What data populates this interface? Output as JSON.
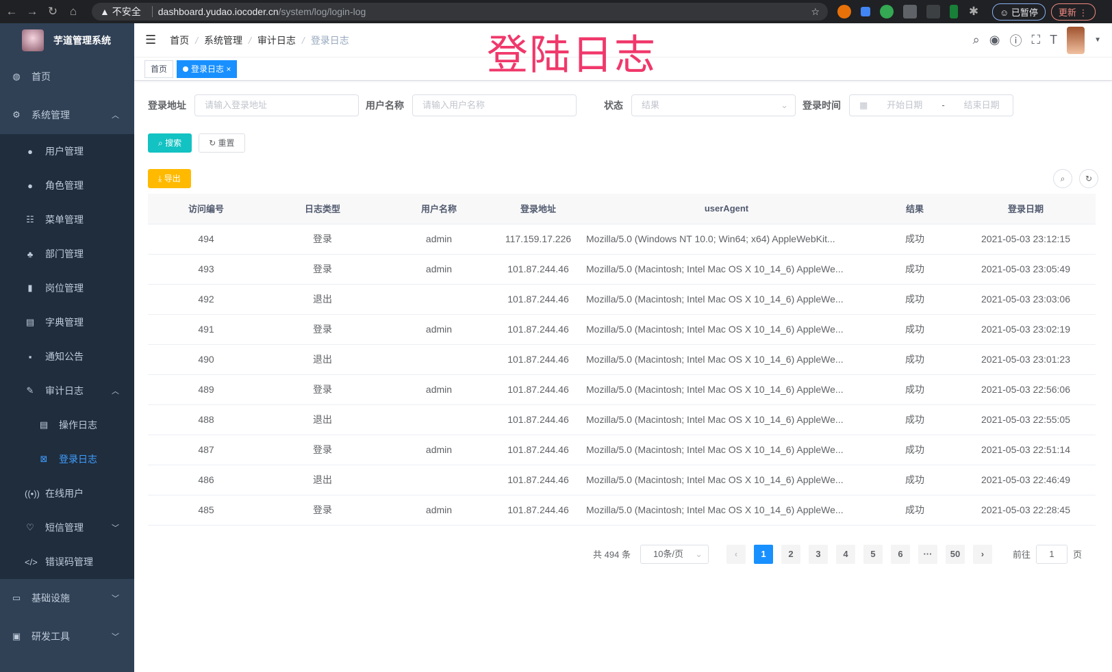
{
  "browser": {
    "security": "不安全",
    "host": "dashboard.yudao.iocoder.cn",
    "path": "/system/log/login-log",
    "paused": "已暂停",
    "update": "更新"
  },
  "overlay_title": "登陆日志",
  "app": {
    "title": "芋道管理系统"
  },
  "sidebar": {
    "items": [
      {
        "label": "首页",
        "icon": "dashboard-icon"
      },
      {
        "label": "系统管理",
        "icon": "gear-icon",
        "expanded": true,
        "children": [
          {
            "label": "用户管理",
            "icon": "user-icon"
          },
          {
            "label": "角色管理",
            "icon": "peoples-icon"
          },
          {
            "label": "菜单管理",
            "icon": "tree-table-icon"
          },
          {
            "label": "部门管理",
            "icon": "tree-icon"
          },
          {
            "label": "岗位管理",
            "icon": "post-icon"
          },
          {
            "label": "字典管理",
            "icon": "dict-icon"
          },
          {
            "label": "通知公告",
            "icon": "message-icon"
          },
          {
            "label": "审计日志",
            "icon": "log-icon",
            "expanded": true,
            "children": [
              {
                "label": "操作日志",
                "icon": "form-icon"
              },
              {
                "label": "登录日志",
                "icon": "logininfor-icon",
                "active": true
              }
            ]
          },
          {
            "label": "在线用户",
            "icon": "online-icon"
          },
          {
            "label": "短信管理",
            "icon": "validCode-icon",
            "collapsed": true
          },
          {
            "label": "错误码管理",
            "icon": "code-icon"
          }
        ]
      },
      {
        "label": "基础设施",
        "icon": "monitor-icon",
        "collapsed": true
      },
      {
        "label": "研发工具",
        "icon": "tool-icon",
        "collapsed": true
      }
    ]
  },
  "breadcrumb": [
    "首页",
    "系统管理",
    "审计日志",
    "登录日志"
  ],
  "tags": [
    {
      "label": "首页"
    },
    {
      "label": "登录日志",
      "active": true
    }
  ],
  "filters": {
    "ip": {
      "label": "登录地址",
      "placeholder": "请输入登录地址"
    },
    "user": {
      "label": "用户名称",
      "placeholder": "请输入用户名称"
    },
    "status": {
      "label": "状态",
      "placeholder": "结果"
    },
    "time": {
      "label": "登录时间",
      "start": "开始日期",
      "sep": "-",
      "end": "结束日期"
    }
  },
  "buttons": {
    "search": "搜索",
    "reset": "重置",
    "export": "导出"
  },
  "table": {
    "headers": [
      "访问编号",
      "日志类型",
      "用户名称",
      "登录地址",
      "userAgent",
      "结果",
      "登录日期"
    ],
    "rows": [
      [
        "494",
        "登录",
        "admin",
        "117.159.17.226",
        "Mozilla/5.0 (Windows NT 10.0; Win64; x64) AppleWebKit...",
        "成功",
        "2021-05-03 23:12:15"
      ],
      [
        "493",
        "登录",
        "admin",
        "101.87.244.46",
        "Mozilla/5.0 (Macintosh; Intel Mac OS X 10_14_6) AppleWe...",
        "成功",
        "2021-05-03 23:05:49"
      ],
      [
        "492",
        "退出",
        "",
        "101.87.244.46",
        "Mozilla/5.0 (Macintosh; Intel Mac OS X 10_14_6) AppleWe...",
        "成功",
        "2021-05-03 23:03:06"
      ],
      [
        "491",
        "登录",
        "admin",
        "101.87.244.46",
        "Mozilla/5.0 (Macintosh; Intel Mac OS X 10_14_6) AppleWe...",
        "成功",
        "2021-05-03 23:02:19"
      ],
      [
        "490",
        "退出",
        "",
        "101.87.244.46",
        "Mozilla/5.0 (Macintosh; Intel Mac OS X 10_14_6) AppleWe...",
        "成功",
        "2021-05-03 23:01:23"
      ],
      [
        "489",
        "登录",
        "admin",
        "101.87.244.46",
        "Mozilla/5.0 (Macintosh; Intel Mac OS X 10_14_6) AppleWe...",
        "成功",
        "2021-05-03 22:56:06"
      ],
      [
        "488",
        "退出",
        "",
        "101.87.244.46",
        "Mozilla/5.0 (Macintosh; Intel Mac OS X 10_14_6) AppleWe...",
        "成功",
        "2021-05-03 22:55:05"
      ],
      [
        "487",
        "登录",
        "admin",
        "101.87.244.46",
        "Mozilla/5.0 (Macintosh; Intel Mac OS X 10_14_6) AppleWe...",
        "成功",
        "2021-05-03 22:51:14"
      ],
      [
        "486",
        "退出",
        "",
        "101.87.244.46",
        "Mozilla/5.0 (Macintosh; Intel Mac OS X 10_14_6) AppleWe...",
        "成功",
        "2021-05-03 22:46:49"
      ],
      [
        "485",
        "登录",
        "admin",
        "101.87.244.46",
        "Mozilla/5.0 (Macintosh; Intel Mac OS X 10_14_6) AppleWe...",
        "成功",
        "2021-05-03 22:28:45"
      ]
    ]
  },
  "pagination": {
    "total": "共 494 条",
    "page_size": "10条/页",
    "pages": [
      "1",
      "2",
      "3",
      "4",
      "5",
      "6",
      "···",
      "50"
    ],
    "current": "1",
    "goto_label": "前往",
    "goto_value": "1",
    "goto_suffix": "页"
  },
  "colors": {
    "sidebar": "#304156",
    "accent": "#1890ff",
    "search": "#13c2c2",
    "export": "#ffba00",
    "overlay": "#f0386b"
  }
}
